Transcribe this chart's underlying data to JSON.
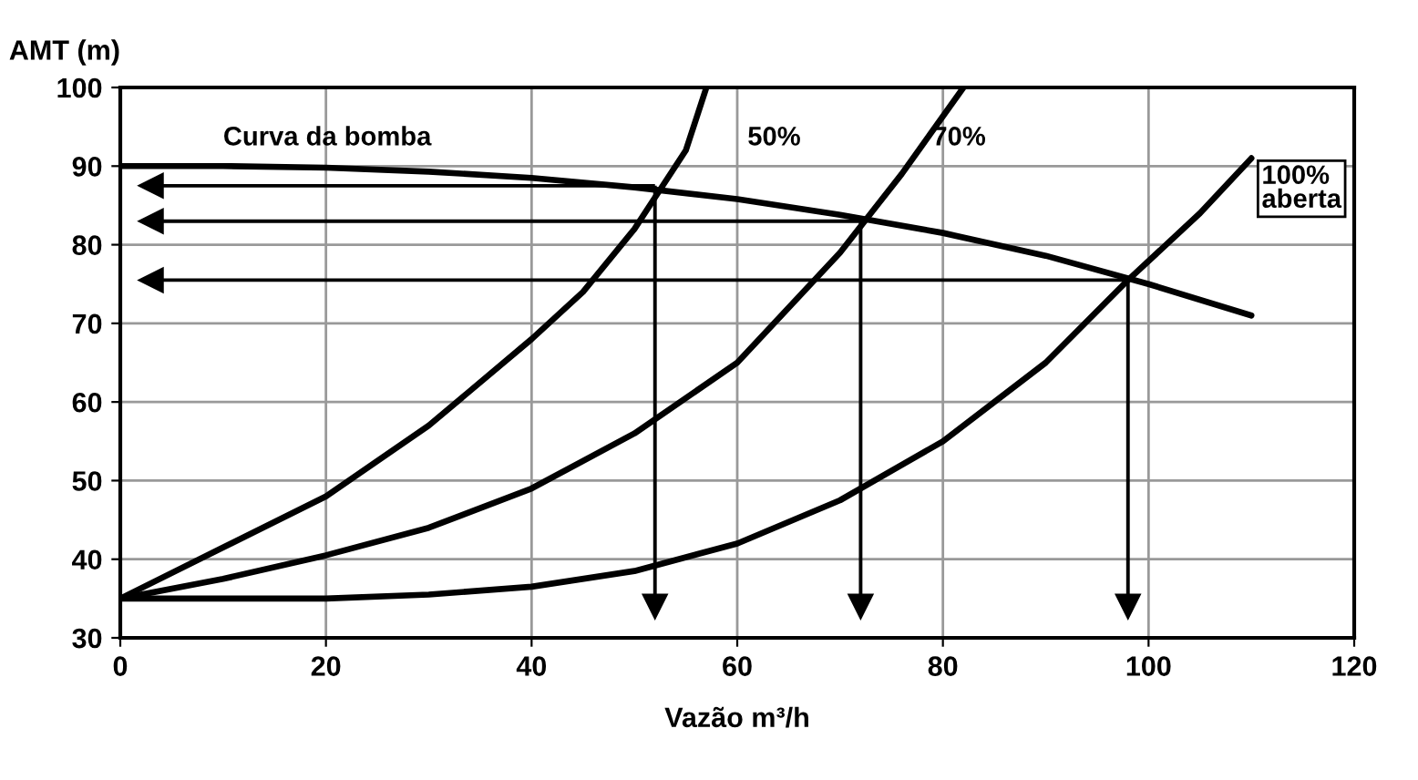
{
  "chart_data": {
    "type": "line",
    "xlabel": "Vazão m³/h",
    "ylabel": "AMT (m)",
    "xlim": [
      0,
      120
    ],
    "ylim": [
      30,
      100
    ],
    "xticks": [
      0,
      20,
      40,
      60,
      80,
      100,
      120
    ],
    "yticks": [
      30,
      40,
      50,
      60,
      70,
      80,
      90,
      100
    ],
    "grid": true,
    "legend": false,
    "series": [
      {
        "name": "Curva da bomba",
        "color": "#000000",
        "x": [
          0,
          10,
          20,
          30,
          40,
          50,
          60,
          70,
          80,
          90,
          100,
          110
        ],
        "values": [
          90,
          90,
          89.8,
          89.3,
          88.5,
          87.3,
          85.8,
          83.8,
          81.5,
          78.6,
          75,
          71
        ]
      },
      {
        "name": "50%",
        "color": "#000000",
        "x": [
          0,
          10,
          20,
          30,
          40,
          45,
          50,
          52,
          55,
          57
        ],
        "values": [
          35,
          41.5,
          48,
          57,
          68,
          74,
          82,
          86,
          92,
          100
        ]
      },
      {
        "name": "70%",
        "color": "#000000",
        "x": [
          0,
          10,
          20,
          30,
          40,
          50,
          60,
          70,
          73,
          76,
          82
        ],
        "values": [
          35,
          37.5,
          40.5,
          44,
          49,
          56,
          65,
          79,
          84,
          89,
          100
        ]
      },
      {
        "name": "100%\naberta",
        "color": "#000000",
        "x": [
          0,
          20,
          30,
          40,
          50,
          60,
          70,
          80,
          90,
          98,
          105,
          110
        ],
        "values": [
          35,
          35,
          35.5,
          36.5,
          38.5,
          42,
          47.5,
          55,
          65,
          75.5,
          84,
          91
        ]
      },
      {
        "type": "line",
        "color": "#000000",
        "x": [
          52,
          3
        ],
        "values": [
          87.5,
          87.5
        ]
      },
      {
        "type": "line",
        "color": "#000000",
        "x": [
          72,
          3
        ],
        "values": [
          83,
          83
        ]
      },
      {
        "type": "line",
        "color": "#000000",
        "x": [
          98,
          3
        ],
        "values": [
          75.5,
          75.5
        ]
      },
      {
        "type": "line",
        "color": "#000000",
        "x": [
          52,
          52
        ],
        "values": [
          87.5,
          34
        ]
      },
      {
        "type": "line",
        "color": "#000000",
        "x": [
          72,
          72
        ],
        "values": [
          83,
          34
        ]
      },
      {
        "type": "line",
        "color": "#000000",
        "x": [
          98,
          98
        ],
        "values": [
          75.5,
          34
        ]
      }
    ]
  }
}
